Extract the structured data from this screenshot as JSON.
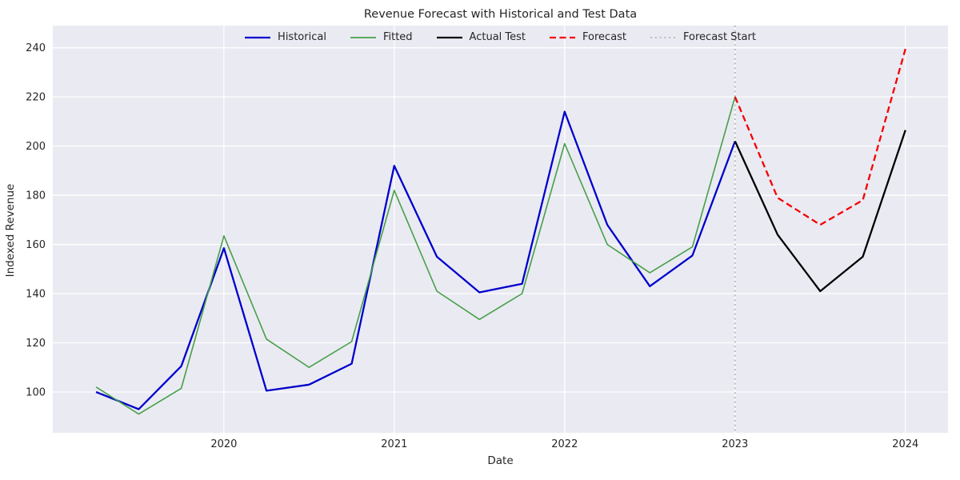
{
  "chart_data": {
    "type": "line",
    "title": "Revenue Forecast with Historical and Test Data",
    "xlabel": "Date",
    "ylabel": "Indexed Revenue",
    "x_ticks": [
      "2020",
      "2021",
      "2022",
      "2023",
      "2024"
    ],
    "y_ticks": [
      100,
      120,
      140,
      160,
      180,
      200,
      220,
      240
    ],
    "ylim": [
      83.4,
      249.0
    ],
    "xlim_months": [
      -0.05,
      63.0
    ],
    "grid": true,
    "legend_position": "top-center-horizontal",
    "colors": {
      "plot_bg": "#eaeaf2",
      "grid": "#ffffff",
      "text": "#262626"
    },
    "series": [
      {
        "name": "Historical",
        "color": "#0000cd",
        "style": "solid",
        "width": 2.3,
        "x": [
          "2019-04",
          "2019-07",
          "2019-10",
          "2020-01",
          "2020-04",
          "2020-07",
          "2020-10",
          "2021-01",
          "2021-04",
          "2021-07",
          "2021-10",
          "2022-01",
          "2022-04",
          "2022-07",
          "2022-10",
          "2023-01"
        ],
        "y": [
          100,
          93,
          110.5,
          158.5,
          100.5,
          103,
          111.5,
          192,
          155,
          140.5,
          144,
          214,
          168,
          143,
          155.5,
          202
        ]
      },
      {
        "name": "Fitted",
        "color": "#46a049",
        "style": "solid",
        "width": 1.6,
        "x": [
          "2019-04",
          "2019-07",
          "2019-10",
          "2020-01",
          "2020-04",
          "2020-07",
          "2020-10",
          "2021-01",
          "2021-04",
          "2021-07",
          "2021-10",
          "2022-01",
          "2022-04",
          "2022-07",
          "2022-10",
          "2023-01"
        ],
        "y": [
          102,
          91,
          101.5,
          163.5,
          121.5,
          110,
          120.5,
          182,
          141,
          129.5,
          140,
          201,
          160,
          148.5,
          159,
          220
        ]
      },
      {
        "name": "Actual Test",
        "color": "#000000",
        "style": "solid",
        "width": 2.3,
        "x": [
          "2023-01",
          "2023-04",
          "2023-07",
          "2023-10",
          "2024-01"
        ],
        "y": [
          202,
          164,
          141,
          155,
          206.5
        ]
      },
      {
        "name": "Forecast",
        "color": "#f50000",
        "style": "dashed",
        "width": 2.3,
        "x": [
          "2023-01",
          "2023-04",
          "2023-07",
          "2023-10",
          "2024-01"
        ],
        "y": [
          220,
          179,
          168,
          178,
          239.5
        ]
      }
    ],
    "vline": {
      "name": "Forecast Start",
      "x": "2023-01",
      "color": "#b5b5b5",
      "style": "dotted",
      "width": 1.8
    }
  }
}
